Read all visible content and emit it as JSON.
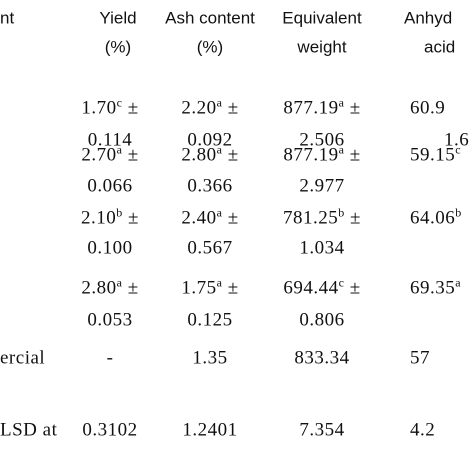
{
  "header": {
    "cells": [
      [
        "nt"
      ],
      [
        "Yield",
        "(%)"
      ],
      [
        "Ash content",
        "(%)"
      ],
      [
        "Equivalent",
        "weight"
      ],
      [
        "Anhyd",
        "acid"
      ]
    ]
  },
  "rows": [
    {
      "cells": [
        {
          "value": "1.70",
          "sup": "c",
          "pm": "±",
          "sd": "0.114"
        },
        {
          "value": "2.20",
          "sup": "a",
          "pm": "±",
          "sd": "0.092"
        },
        {
          "value": "877.19",
          "sup": "a",
          "pm": "±",
          "sd": "2.506"
        },
        {
          "value": "60.9",
          "sd": "1.6"
        }
      ]
    },
    {
      "cells": [
        {
          "value": "2.70",
          "sup": "a",
          "pm": "±",
          "sd": "0.066"
        },
        {
          "value": "2.80",
          "sup": "a",
          "pm": "±",
          "sd": "0.366"
        },
        {
          "value": "877.19",
          "sup": "a",
          "pm": "±",
          "sd": "2.977"
        },
        {
          "value": "59.15",
          "sup": "c"
        }
      ]
    },
    {
      "cells": [
        {
          "value": "2.10",
          "sup": "b",
          "pm": "±",
          "sd": "0.100"
        },
        {
          "value": "2.40",
          "sup": "a",
          "pm": "±",
          "sd": "0.567"
        },
        {
          "value": "781.25",
          "sup": "b",
          "pm": "±",
          "sd": "1.034"
        },
        {
          "value": "64.06",
          "sup": "b"
        }
      ]
    },
    {
      "cells": [
        {
          "value": "2.80",
          "sup": "a",
          "pm": "±",
          "sd": "0.053"
        },
        {
          "value": "1.75",
          "sup": "a",
          "pm": "±",
          "sd": "0.125"
        },
        {
          "value": "694.44",
          "sup": "c",
          "pm": "±",
          "sd": "0.806"
        },
        {
          "value": "69.35",
          "sup": "a"
        }
      ]
    },
    {
      "label": "ercial",
      "cells": [
        {
          "value": "-"
        },
        {
          "value": "1.35"
        },
        {
          "value": "833.34"
        },
        {
          "value": "57"
        }
      ]
    },
    {
      "label": "LSD at",
      "cells": [
        {
          "value": "0.3102"
        },
        {
          "value": "1.2401"
        },
        {
          "value": "7.354"
        },
        {
          "value": "4.2"
        }
      ]
    }
  ]
}
